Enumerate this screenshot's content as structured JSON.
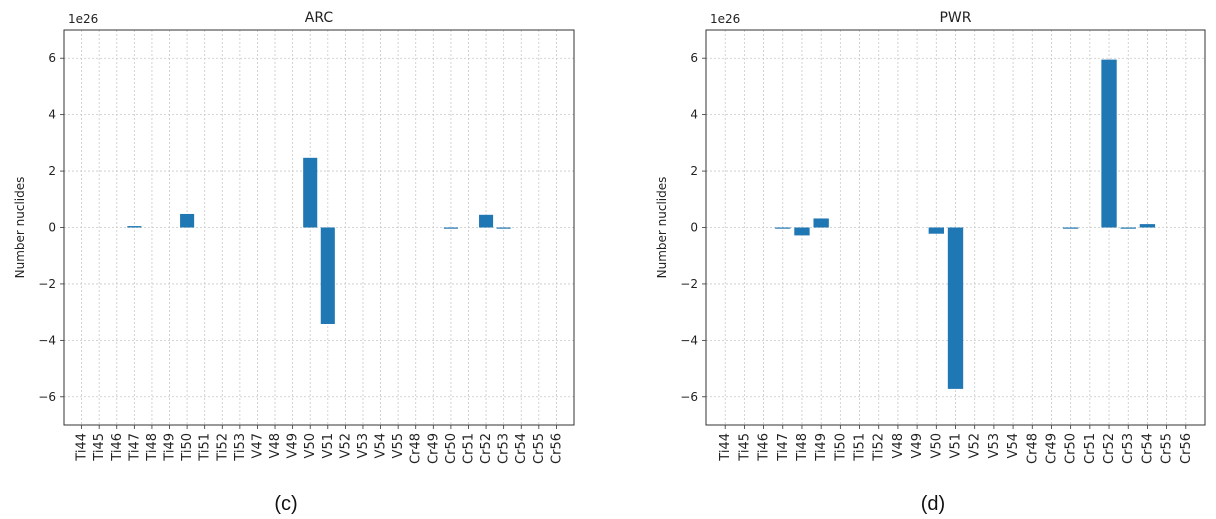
{
  "chart_data": [
    {
      "type": "bar",
      "title": "ARC",
      "ylabel": "Number nuclides",
      "scale_label": "1e26",
      "ylim": [
        -7,
        7
      ],
      "yticks": [
        -6,
        -4,
        -2,
        0,
        2,
        4,
        6
      ],
      "grid": true,
      "color": "#1f77b4",
      "caption": "(c)",
      "categories": [
        "Ti44",
        "Ti45",
        "Ti46",
        "Ti47",
        "Ti48",
        "Ti49",
        "Ti50",
        "Ti51",
        "Ti52",
        "Ti53",
        "V47",
        "V48",
        "V49",
        "V50",
        "V51",
        "V52",
        "V53",
        "V54",
        "V55",
        "Cr48",
        "Cr49",
        "Cr50",
        "Cr51",
        "Cr52",
        "Cr53",
        "Cr54",
        "Cr55",
        "Cr56"
      ],
      "values": [
        0,
        0,
        0,
        0.05,
        0,
        0,
        0.48,
        0,
        0,
        0,
        0,
        0,
        0,
        2.47,
        -3.42,
        0,
        0,
        0,
        0,
        0,
        0,
        -0.03,
        0,
        0.45,
        -0.03,
        0,
        0,
        0
      ]
    },
    {
      "type": "bar",
      "title": "PWR",
      "ylabel": "Number nuclides",
      "scale_label": "1e26",
      "ylim": [
        -7,
        7
      ],
      "yticks": [
        -6,
        -4,
        -2,
        0,
        2,
        4,
        6
      ],
      "grid": true,
      "color": "#1f77b4",
      "caption": "(d)",
      "categories": [
        "Ti44",
        "Ti45",
        "Ti46",
        "Ti47",
        "Ti48",
        "Ti49",
        "Ti50",
        "Ti51",
        "Ti52",
        "V48",
        "V49",
        "V50",
        "V51",
        "V52",
        "V53",
        "V54",
        "Cr48",
        "Cr49",
        "Cr50",
        "Cr51",
        "Cr52",
        "Cr53",
        "Cr54",
        "Cr55",
        "Cr56"
      ],
      "values": [
        0,
        0,
        0,
        -0.04,
        -0.28,
        0.32,
        0,
        0,
        0,
        0,
        0,
        -0.22,
        -5.72,
        0,
        0,
        0,
        0,
        0,
        -0.03,
        0,
        5.95,
        -0.04,
        0.12,
        0,
        0
      ]
    }
  ]
}
